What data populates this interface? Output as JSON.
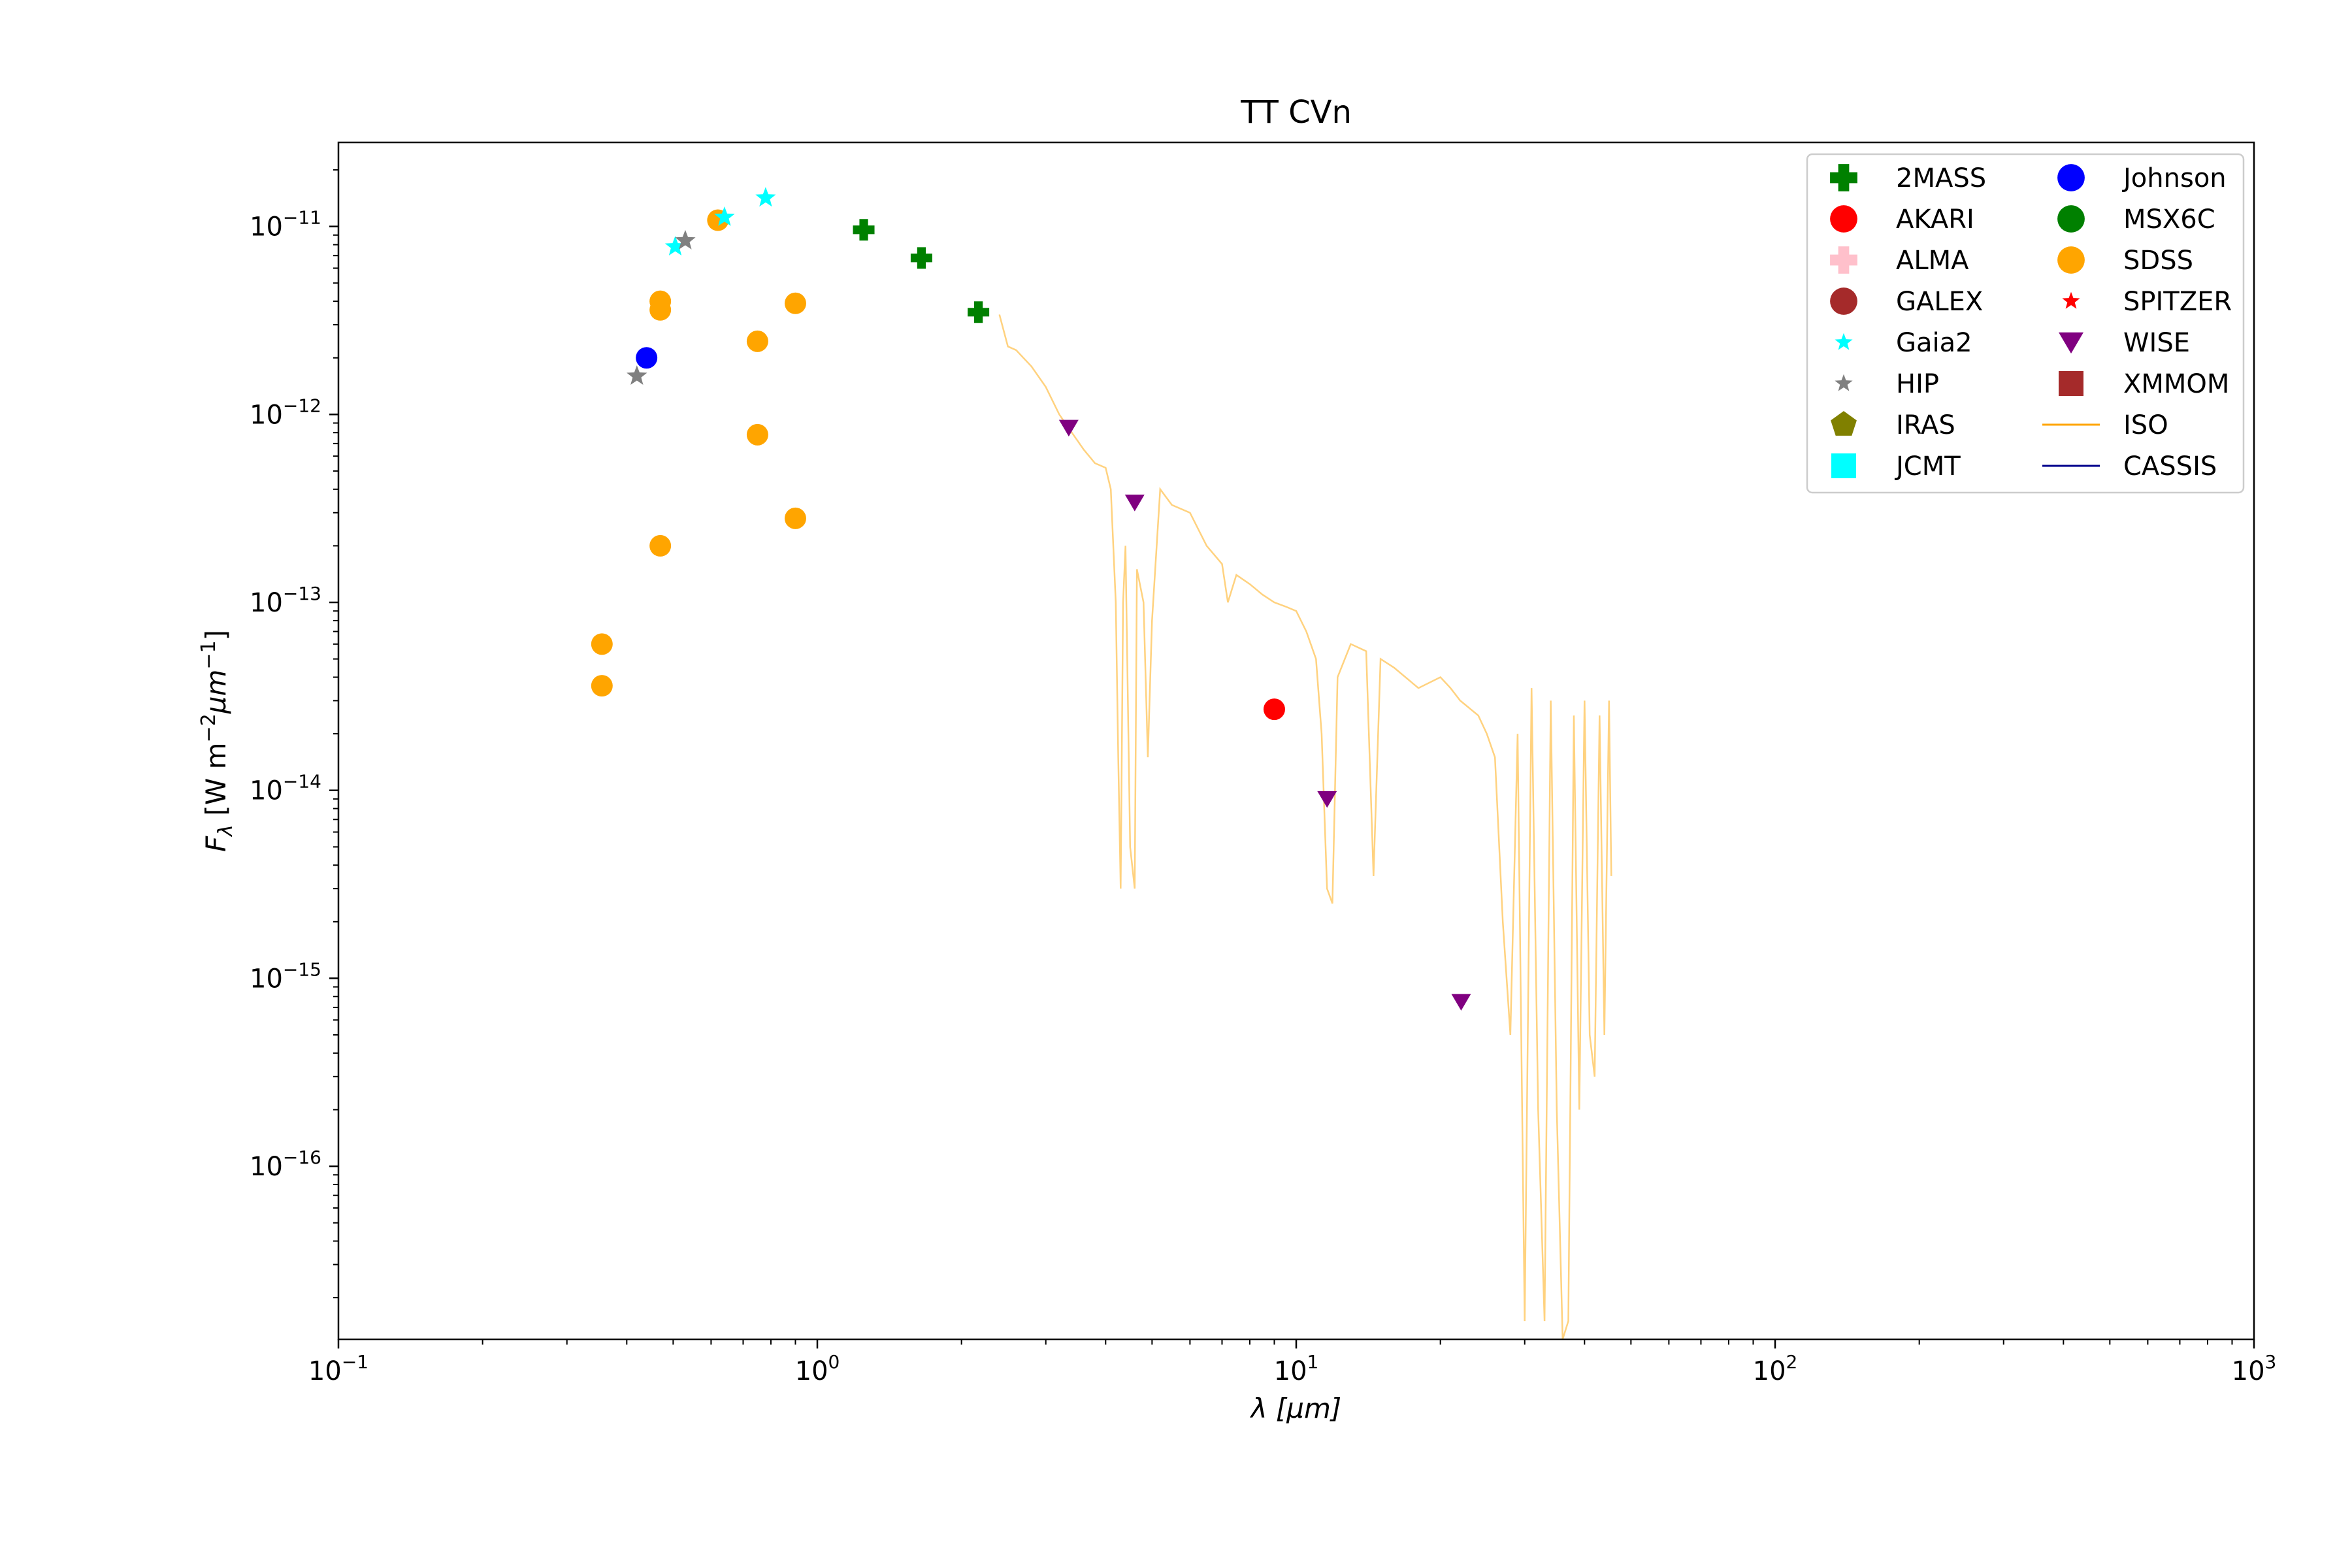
{
  "chart_data": {
    "type": "scatter",
    "title": "TT CVn",
    "xlabel": "λ [μm]",
    "ylabel": "F_λ [W m^-2 μm^-1]",
    "x_scale": "log",
    "y_scale": "log",
    "xlim": [
      0.1,
      1000
    ],
    "ylim": [
      1.2e-17,
      2.8e-11
    ],
    "grid": false,
    "legend_position": "top-right",
    "x_ticks": [
      {
        "value": 0.1,
        "base": "10",
        "exp": "−1"
      },
      {
        "value": 1,
        "base": "10",
        "exp": "0"
      },
      {
        "value": 10,
        "base": "10",
        "exp": "1"
      },
      {
        "value": 100,
        "base": "10",
        "exp": "2"
      },
      {
        "value": 1000,
        "base": "10",
        "exp": "3"
      }
    ],
    "y_ticks": [
      {
        "value": 1e-11,
        "base": "10",
        "exp": "−11"
      },
      {
        "value": 1e-12,
        "base": "10",
        "exp": "−12"
      },
      {
        "value": 1e-13,
        "base": "10",
        "exp": "−13"
      },
      {
        "value": 1e-14,
        "base": "10",
        "exp": "−14"
      },
      {
        "value": 1e-15,
        "base": "10",
        "exp": "−15"
      },
      {
        "value": 1e-16,
        "base": "10",
        "exp": "−16"
      }
    ],
    "legend": [
      {
        "name": "2MASS",
        "color": "#008000",
        "marker": "plus"
      },
      {
        "name": "AKARI",
        "color": "#ff0000",
        "marker": "circle"
      },
      {
        "name": "ALMA",
        "color": "#ffc0cb",
        "marker": "plus"
      },
      {
        "name": "GALEX",
        "color": "#a52a2a",
        "marker": "circle"
      },
      {
        "name": "Gaia2",
        "color": "#00ffff",
        "marker": "star"
      },
      {
        "name": "HIP",
        "color": "#808080",
        "marker": "star"
      },
      {
        "name": "IRAS",
        "color": "#808000",
        "marker": "pentagon"
      },
      {
        "name": "JCMT",
        "color": "#00ffff",
        "marker": "square"
      },
      {
        "name": "Johnson",
        "color": "#0000ff",
        "marker": "circle"
      },
      {
        "name": "MSX6C",
        "color": "#008000",
        "marker": "circle"
      },
      {
        "name": "SDSS",
        "color": "#ffa500",
        "marker": "circle"
      },
      {
        "name": "SPITZER",
        "color": "#ff0000",
        "marker": "star"
      },
      {
        "name": "WISE",
        "color": "#800080",
        "marker": "triangle-down"
      },
      {
        "name": "XMMOM",
        "color": "#a52a2a",
        "marker": "square"
      },
      {
        "name": "ISO",
        "color": "#ffa500",
        "marker": "line"
      },
      {
        "name": "CASSIS",
        "color": "#00008b",
        "marker": "line"
      }
    ],
    "series": [
      {
        "name": "2MASS",
        "color": "#008000",
        "marker": "plus",
        "points": [
          [
            1.25,
            9.6e-12
          ],
          [
            1.65,
            6.8e-12
          ],
          [
            2.17,
            3.5e-12
          ]
        ]
      },
      {
        "name": "AKARI",
        "color": "#ff0000",
        "marker": "circle",
        "points": [
          [
            9.0,
            2.7e-14
          ]
        ]
      },
      {
        "name": "Johnson",
        "color": "#0000ff",
        "marker": "circle",
        "points": [
          [
            0.44,
            2e-12
          ]
        ]
      },
      {
        "name": "SDSS",
        "color": "#ffa500",
        "marker": "circle",
        "points": [
          [
            0.355,
            6e-14
          ],
          [
            0.355,
            3.6e-14
          ],
          [
            0.47,
            4e-12
          ],
          [
            0.47,
            3.6e-12
          ],
          [
            0.47,
            2e-13
          ],
          [
            0.62,
            1.08e-11
          ],
          [
            0.75,
            2.45e-12
          ],
          [
            0.75,
            7.8e-13
          ],
          [
            0.9,
            3.9e-12
          ],
          [
            0.9,
            2.8e-13
          ]
        ]
      },
      {
        "name": "Gaia2",
        "color": "#00ffff",
        "marker": "star",
        "points": [
          [
            0.505,
            7.8e-12
          ],
          [
            0.64,
            1.12e-11
          ],
          [
            0.78,
            1.42e-11
          ]
        ]
      },
      {
        "name": "HIP",
        "color": "#808080",
        "marker": "star",
        "points": [
          [
            0.42,
            1.6e-12
          ],
          [
            0.53,
            8.4e-12
          ]
        ]
      },
      {
        "name": "WISE",
        "color": "#800080",
        "marker": "triangle-down",
        "points": [
          [
            3.35,
            8.5e-13
          ],
          [
            4.6,
            3.4e-13
          ],
          [
            11.6,
            9e-15
          ],
          [
            22.1,
            7.5e-16
          ]
        ]
      },
      {
        "name": "ISO",
        "color": "#ffa500",
        "marker": "line",
        "opacity": 0.5,
        "points": [
          [
            2.4,
            3.4e-12
          ],
          [
            2.5,
            2.3e-12
          ],
          [
            2.6,
            2.2e-12
          ],
          [
            2.8,
            1.8e-12
          ],
          [
            3.0,
            1.4e-12
          ],
          [
            3.2,
            1e-12
          ],
          [
            3.4,
            8e-13
          ],
          [
            3.6,
            6.5e-13
          ],
          [
            3.8,
            5.5e-13
          ],
          [
            4.0,
            5.2e-13
          ],
          [
            4.1,
            4e-13
          ],
          [
            4.2,
            1e-13
          ],
          [
            4.25,
            1.5e-14
          ],
          [
            4.3,
            3e-15
          ],
          [
            4.35,
            1e-13
          ],
          [
            4.4,
            2e-13
          ],
          [
            4.5,
            5e-15
          ],
          [
            4.6,
            3e-15
          ],
          [
            4.65,
            1.5e-13
          ],
          [
            4.8,
            1e-13
          ],
          [
            4.9,
            1.5e-14
          ],
          [
            5.0,
            8e-14
          ],
          [
            5.2,
            4e-13
          ],
          [
            5.5,
            3.3e-13
          ],
          [
            6.0,
            3e-13
          ],
          [
            6.5,
            2e-13
          ],
          [
            7.0,
            1.6e-13
          ],
          [
            7.2,
            1e-13
          ],
          [
            7.5,
            1.4e-13
          ],
          [
            8.0,
            1.25e-13
          ],
          [
            8.5,
            1.1e-13
          ],
          [
            9.0,
            1e-13
          ],
          [
            9.5,
            9.5e-14
          ],
          [
            10.0,
            9e-14
          ],
          [
            10.5,
            7e-14
          ],
          [
            11.0,
            5e-14
          ],
          [
            11.3,
            2e-14
          ],
          [
            11.6,
            3e-15
          ],
          [
            11.9,
            2.5e-15
          ],
          [
            12.2,
            4e-14
          ],
          [
            13.0,
            6e-14
          ],
          [
            14.0,
            5.5e-14
          ],
          [
            14.5,
            3.5e-15
          ],
          [
            15.0,
            5e-14
          ],
          [
            16.0,
            4.5e-14
          ],
          [
            18.0,
            3.5e-14
          ],
          [
            20.0,
            4e-14
          ],
          [
            21.0,
            3.5e-14
          ],
          [
            22.0,
            3e-14
          ],
          [
            24.0,
            2.5e-14
          ],
          [
            25.0,
            2e-14
          ],
          [
            26.0,
            1.5e-14
          ],
          [
            27.0,
            2e-15
          ],
          [
            28.0,
            5e-16
          ],
          [
            29.0,
            2e-14
          ],
          [
            30.0,
            1.5e-17
          ],
          [
            31.0,
            3.5e-14
          ],
          [
            32.0,
            2e-16
          ],
          [
            33.0,
            1.5e-17
          ],
          [
            34.0,
            3e-14
          ],
          [
            35.0,
            2e-16
          ],
          [
            36.0,
            1.2e-17
          ],
          [
            37.0,
            1.5e-17
          ],
          [
            38.0,
            2.5e-14
          ],
          [
            39.0,
            2e-16
          ],
          [
            40.0,
            3e-14
          ],
          [
            41.0,
            5e-16
          ],
          [
            42.0,
            3e-16
          ],
          [
            43.0,
            2.5e-14
          ],
          [
            44.0,
            5e-16
          ],
          [
            45.0,
            3e-14
          ],
          [
            45.5,
            3.5e-15
          ]
        ]
      }
    ]
  }
}
